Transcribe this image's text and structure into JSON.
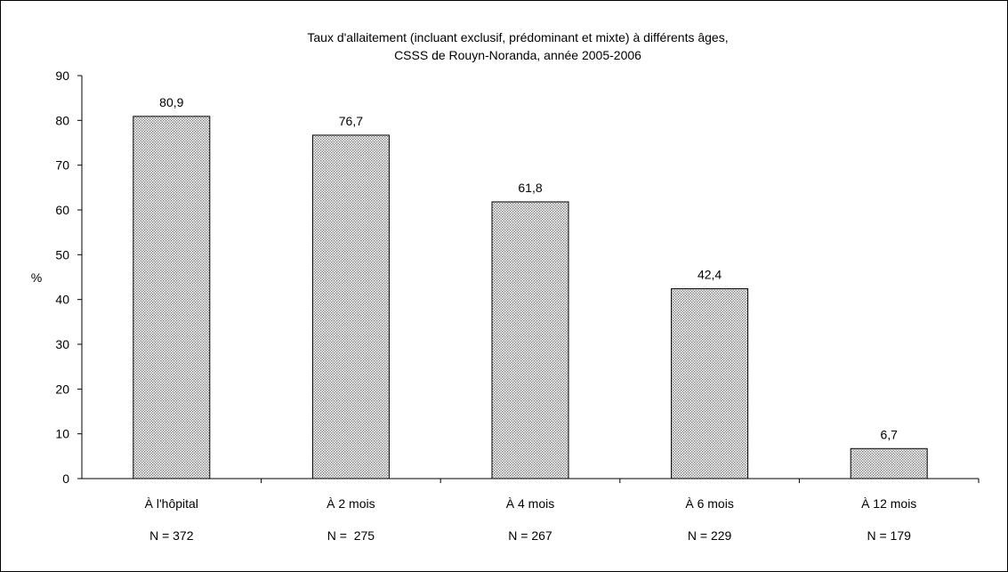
{
  "chart_data": {
    "type": "bar",
    "title_lines": [
      "Taux d'allaitement (incluant exclusif, prédominant et mixte) à différents âges,",
      "CSSS de Rouyn-Noranda, année 2005-2006"
    ],
    "ylabel": "%",
    "ylim": [
      0,
      90
    ],
    "yticks": [
      0,
      10,
      20,
      30,
      40,
      50,
      60,
      70,
      80,
      90
    ],
    "categories": [
      "À l'hôpital",
      "À 2 mois",
      "À 4 mois",
      "À 6 mois",
      "À 12 mois"
    ],
    "values": [
      80.9,
      76.7,
      61.8,
      42.4,
      6.7
    ],
    "value_labels": [
      "80,9",
      "76,7",
      "61,8",
      "42,4",
      "6,7"
    ],
    "sample_sizes": [
      "N = 372",
      "N =  275",
      "N = 267",
      "N = 229",
      "N = 179"
    ],
    "bar_pattern": "dotted-gray",
    "grid": false,
    "legend": "none"
  }
}
